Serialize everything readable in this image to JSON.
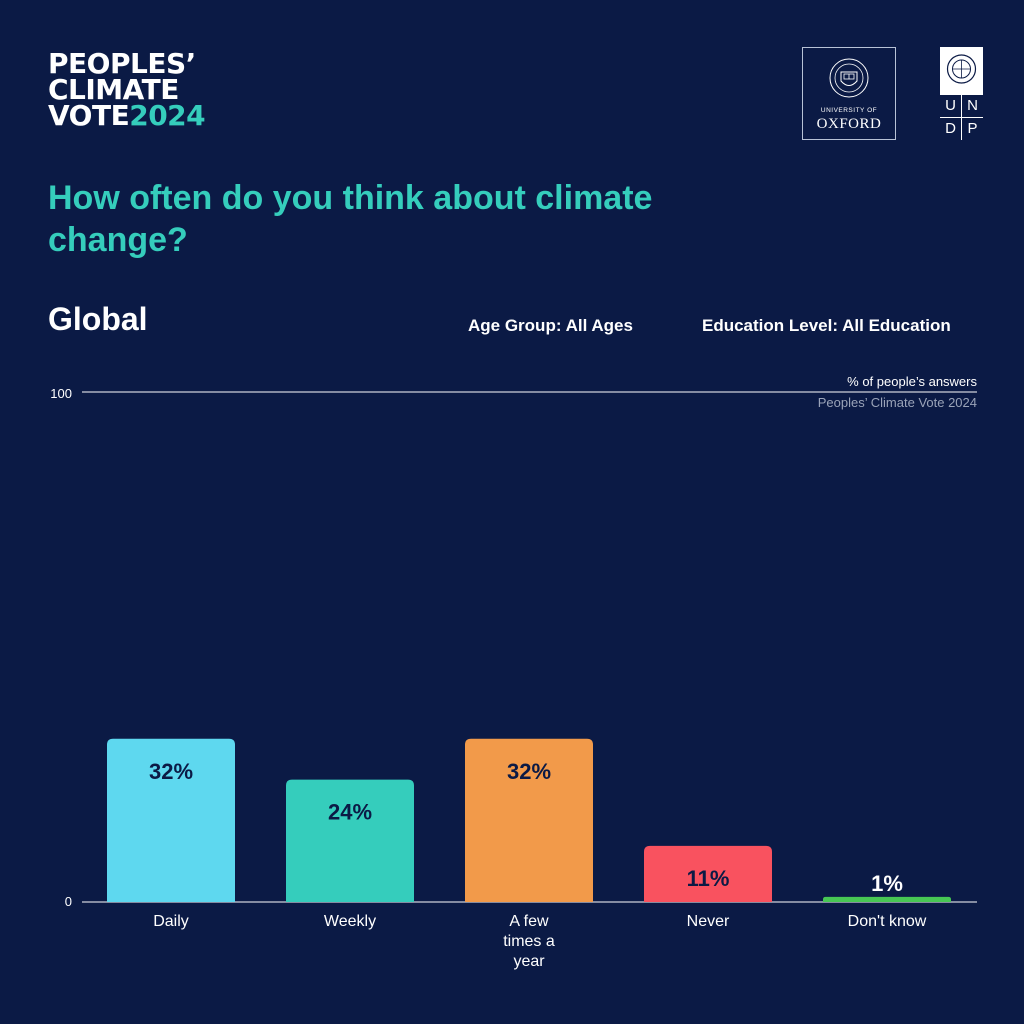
{
  "brand": {
    "line1": "PEOPLES’",
    "line2": "CLIMATE",
    "line3_word": "VOTE",
    "line3_year": "2024"
  },
  "logos": {
    "oxford_university": "UNIVERSITY OF",
    "oxford_name": "OXFORD",
    "undp_letters": [
      "U",
      "N",
      "D",
      "P"
    ]
  },
  "question": "How often do you think about climate change?",
  "region": "Global",
  "filters": {
    "age": "Age Group: All Ages",
    "education": "Education Level: All Education"
  },
  "colors": {
    "background": "#0b1a45",
    "accent": "#35cdbc"
  },
  "chart_data": {
    "type": "bar",
    "categories": [
      "Daily",
      "Weekly",
      "A few times a year",
      "Never",
      "Don't know"
    ],
    "category_label_lines": [
      [
        "Daily"
      ],
      [
        "Weekly"
      ],
      [
        "A few",
        "times a",
        "year"
      ],
      [
        "Never"
      ],
      [
        "Don't know"
      ]
    ],
    "values": [
      32,
      24,
      32,
      11,
      1
    ],
    "value_labels": [
      "32%",
      "24%",
      "32%",
      "11%",
      "1%"
    ],
    "colors": [
      "#5ed8ef",
      "#35cdbc",
      "#f29a4a",
      "#f9525f",
      "#47c754"
    ],
    "ylim": [
      0,
      100
    ],
    "ytick_labels": [
      "0",
      "100"
    ],
    "unit_note": "% of people’s answers",
    "source": "Peoples’ Climate Vote 2024",
    "grid": false
  }
}
